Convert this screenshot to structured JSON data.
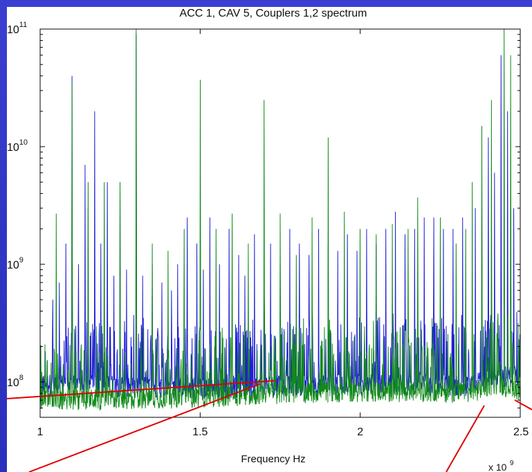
{
  "chart_data": {
    "type": "line",
    "title": "ACC 1, CAV 5, Couplers 1,2 spectrum",
    "xlabel": "Frequency Hz",
    "ylabel": "",
    "x_multiplier_label": "x 10",
    "x_multiplier_exponent": "9",
    "x_scale_factor": 1000000000,
    "xlim": [
      1.0,
      2.5
    ],
    "ylim": [
      50000000,
      100000000000
    ],
    "y_scale": "log",
    "grid": false,
    "x_ticks": [
      {
        "value": 1.0,
        "label": "1"
      },
      {
        "value": 1.5,
        "label": "1.5"
      },
      {
        "value": 2.0,
        "label": "2"
      },
      {
        "value": 2.5,
        "label": "2.5"
      }
    ],
    "y_ticks": [
      {
        "value": 100000000,
        "base": "10",
        "exp": "8"
      },
      {
        "value": 1000000000,
        "base": "10",
        "exp": "9"
      },
      {
        "value": 10000000000,
        "base": "10",
        "exp": "10"
      },
      {
        "value": 100000000000,
        "base": "10",
        "exp": "11"
      }
    ],
    "series": [
      {
        "color": "#1f1fd6",
        "baseline": [
          [
            1.0,
            95000000
          ],
          [
            1.2,
            92000000
          ],
          [
            1.4,
            88000000
          ],
          [
            1.6,
            88000000
          ],
          [
            1.8,
            92000000
          ],
          [
            2.0,
            95000000
          ],
          [
            2.2,
            95000000
          ],
          [
            2.35,
            90000000
          ],
          [
            2.4,
            110000000
          ],
          [
            2.5,
            110000000
          ]
        ],
        "peaks": [
          [
            1.04,
            500000000
          ],
          [
            1.06,
            700000000
          ],
          [
            1.08,
            1500000000
          ],
          [
            1.1,
            40000000000
          ],
          [
            1.12,
            1000000000
          ],
          [
            1.14,
            7000000000
          ],
          [
            1.15,
            3000000000
          ],
          [
            1.17,
            20000000000
          ],
          [
            1.19,
            1500000000
          ],
          [
            1.21,
            5000000000
          ],
          [
            1.23,
            800000000
          ],
          [
            1.25,
            5000000000
          ],
          [
            1.27,
            900000000
          ],
          [
            1.3,
            90000000000
          ],
          [
            1.32,
            800000000
          ],
          [
            1.35,
            1000000000
          ],
          [
            1.38,
            700000000
          ],
          [
            1.41,
            600000000
          ],
          [
            1.43,
            1000000000
          ],
          [
            1.46,
            2500000000
          ],
          [
            1.49,
            1500000000
          ],
          [
            1.51,
            900000000
          ],
          [
            1.53,
            2500000000
          ],
          [
            1.56,
            1000000000
          ],
          [
            1.59,
            2000000000
          ],
          [
            1.62,
            1200000000
          ],
          [
            1.64,
            800000000
          ],
          [
            1.67,
            1800000000
          ],
          [
            1.7,
            3000000000
          ],
          [
            1.72,
            1500000000
          ],
          [
            1.75,
            1000000000
          ],
          [
            1.78,
            2000000000
          ],
          [
            1.81,
            1500000000
          ],
          [
            1.84,
            1200000000
          ],
          [
            1.87,
            2000000000
          ],
          [
            1.9,
            1500000000
          ],
          [
            1.93,
            1300000000
          ],
          [
            1.96,
            1800000000
          ],
          [
            1.99,
            1300000000
          ],
          [
            2.02,
            2000000000
          ],
          [
            2.05,
            1500000000
          ],
          [
            2.08,
            2000000000
          ],
          [
            2.11,
            2800000000
          ],
          [
            2.14,
            1800000000
          ],
          [
            2.17,
            2000000000
          ],
          [
            2.2,
            2500000000
          ],
          [
            2.23,
            2500000000
          ],
          [
            2.26,
            2000000000
          ],
          [
            2.29,
            2000000000
          ],
          [
            2.32,
            2500000000
          ],
          [
            2.36,
            3000000000
          ],
          [
            2.38,
            5000000000
          ],
          [
            2.4,
            12000000000
          ],
          [
            2.42,
            6000000000
          ],
          [
            2.44,
            60000000000
          ],
          [
            2.46,
            20000000000
          ],
          [
            2.48,
            3000000000
          ]
        ]
      },
      {
        "color": "#118a1a",
        "baseline": [
          [
            1.0,
            70000000
          ],
          [
            1.2,
            70000000
          ],
          [
            1.4,
            72000000
          ],
          [
            1.6,
            75000000
          ],
          [
            1.7,
            78000000
          ],
          [
            1.8,
            80000000
          ],
          [
            2.0,
            82000000
          ],
          [
            2.2,
            82000000
          ],
          [
            2.35,
            80000000
          ],
          [
            2.42,
            95000000
          ],
          [
            2.5,
            85000000
          ]
        ],
        "peaks": [
          [
            1.05,
            2700000000
          ],
          [
            1.1,
            35000000000
          ],
          [
            1.15,
            5000000000
          ],
          [
            1.2,
            5000000000
          ],
          [
            1.25,
            5000000000
          ],
          [
            1.3,
            100000000000
          ],
          [
            1.35,
            1500000000
          ],
          [
            1.4,
            1300000000
          ],
          [
            1.45,
            2000000000
          ],
          [
            1.5,
            37000000000
          ],
          [
            1.55,
            2000000000
          ],
          [
            1.6,
            2700000000
          ],
          [
            1.65,
            1500000000
          ],
          [
            1.7,
            25000000000
          ],
          [
            1.75,
            2700000000
          ],
          [
            1.8,
            1200000000
          ],
          [
            1.85,
            2500000000
          ],
          [
            1.9,
            12000000000
          ],
          [
            1.95,
            2800000000
          ],
          [
            2.0,
            2000000000
          ],
          [
            2.05,
            1800000000
          ],
          [
            2.1,
            2200000000
          ],
          [
            2.15,
            2000000000
          ],
          [
            2.18,
            3700000000
          ],
          [
            2.25,
            2500000000
          ],
          [
            2.3,
            1500000000
          ],
          [
            2.33,
            2000000000
          ],
          [
            2.35,
            5000000000
          ],
          [
            2.38,
            15000000000
          ],
          [
            2.41,
            25000000000
          ],
          [
            2.45,
            100000000000
          ],
          [
            2.47,
            60000000000
          ]
        ]
      }
    ]
  }
}
